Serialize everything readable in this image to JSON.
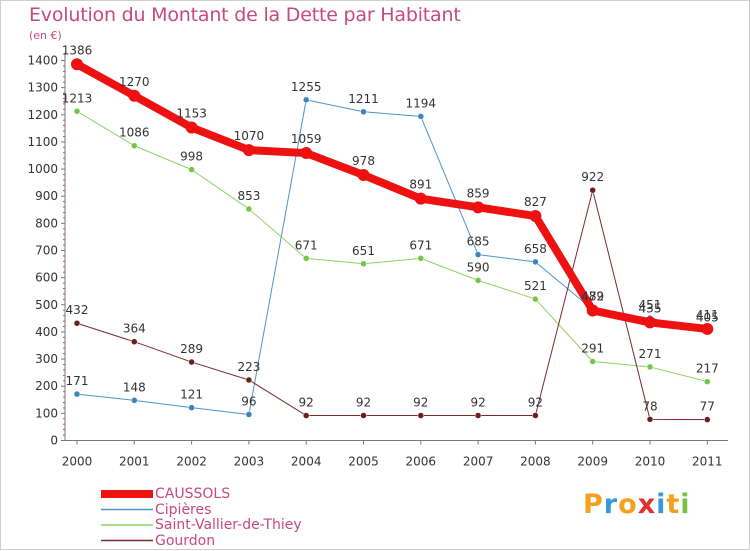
{
  "header": {
    "title": "Evolution du Montant de la Dette par Habitant",
    "unit": "(en €)"
  },
  "logo": {
    "text": "Proxiti"
  },
  "chart_data": {
    "type": "line",
    "title": "Evolution du Montant de la Dette par Habitant",
    "ylabel": "(en €)",
    "xlabel": "",
    "ylim": [
      0,
      1400
    ],
    "ytick_step": 100,
    "grid": false,
    "legend_position": "bottom-left",
    "x": [
      "2000",
      "2001",
      "2002",
      "2003",
      "2004",
      "2005",
      "2006",
      "2007",
      "2008",
      "2009",
      "2010",
      "2011"
    ],
    "series": [
      {
        "name": "Cipières",
        "color": "#4d93c9",
        "dot": "#3d84bd",
        "width": 1,
        "values": [
          171,
          148,
          121,
          96,
          1255,
          1211,
          1194,
          685,
          658,
          482,
          451,
          405
        ]
      },
      {
        "name": "Saint-Vallier-de-Thiey",
        "color": "#8fd163",
        "dot": "#76c646",
        "width": 1,
        "values": [
          1213,
          1086,
          998,
          853,
          671,
          651,
          671,
          590,
          521,
          291,
          271,
          217
        ]
      },
      {
        "name": "Gourdon",
        "color": "#7a2a2a",
        "dot": "#6a1f1f",
        "width": 1,
        "values": [
          432,
          364,
          289,
          223,
          92,
          92,
          92,
          92,
          92,
          922,
          78,
          77
        ]
      },
      {
        "name": "CAUSSOLS",
        "color": "#ee1111",
        "dot": "#ee1111",
        "width": 8,
        "values": [
          1386,
          1270,
          1153,
          1070,
          1059,
          978,
          891,
          859,
          827,
          479,
          435,
          411
        ]
      }
    ],
    "legend_order": [
      "CAUSSOLS",
      "Cipières",
      "Saint-Vallier-de-Thiey",
      "Gourdon"
    ]
  }
}
